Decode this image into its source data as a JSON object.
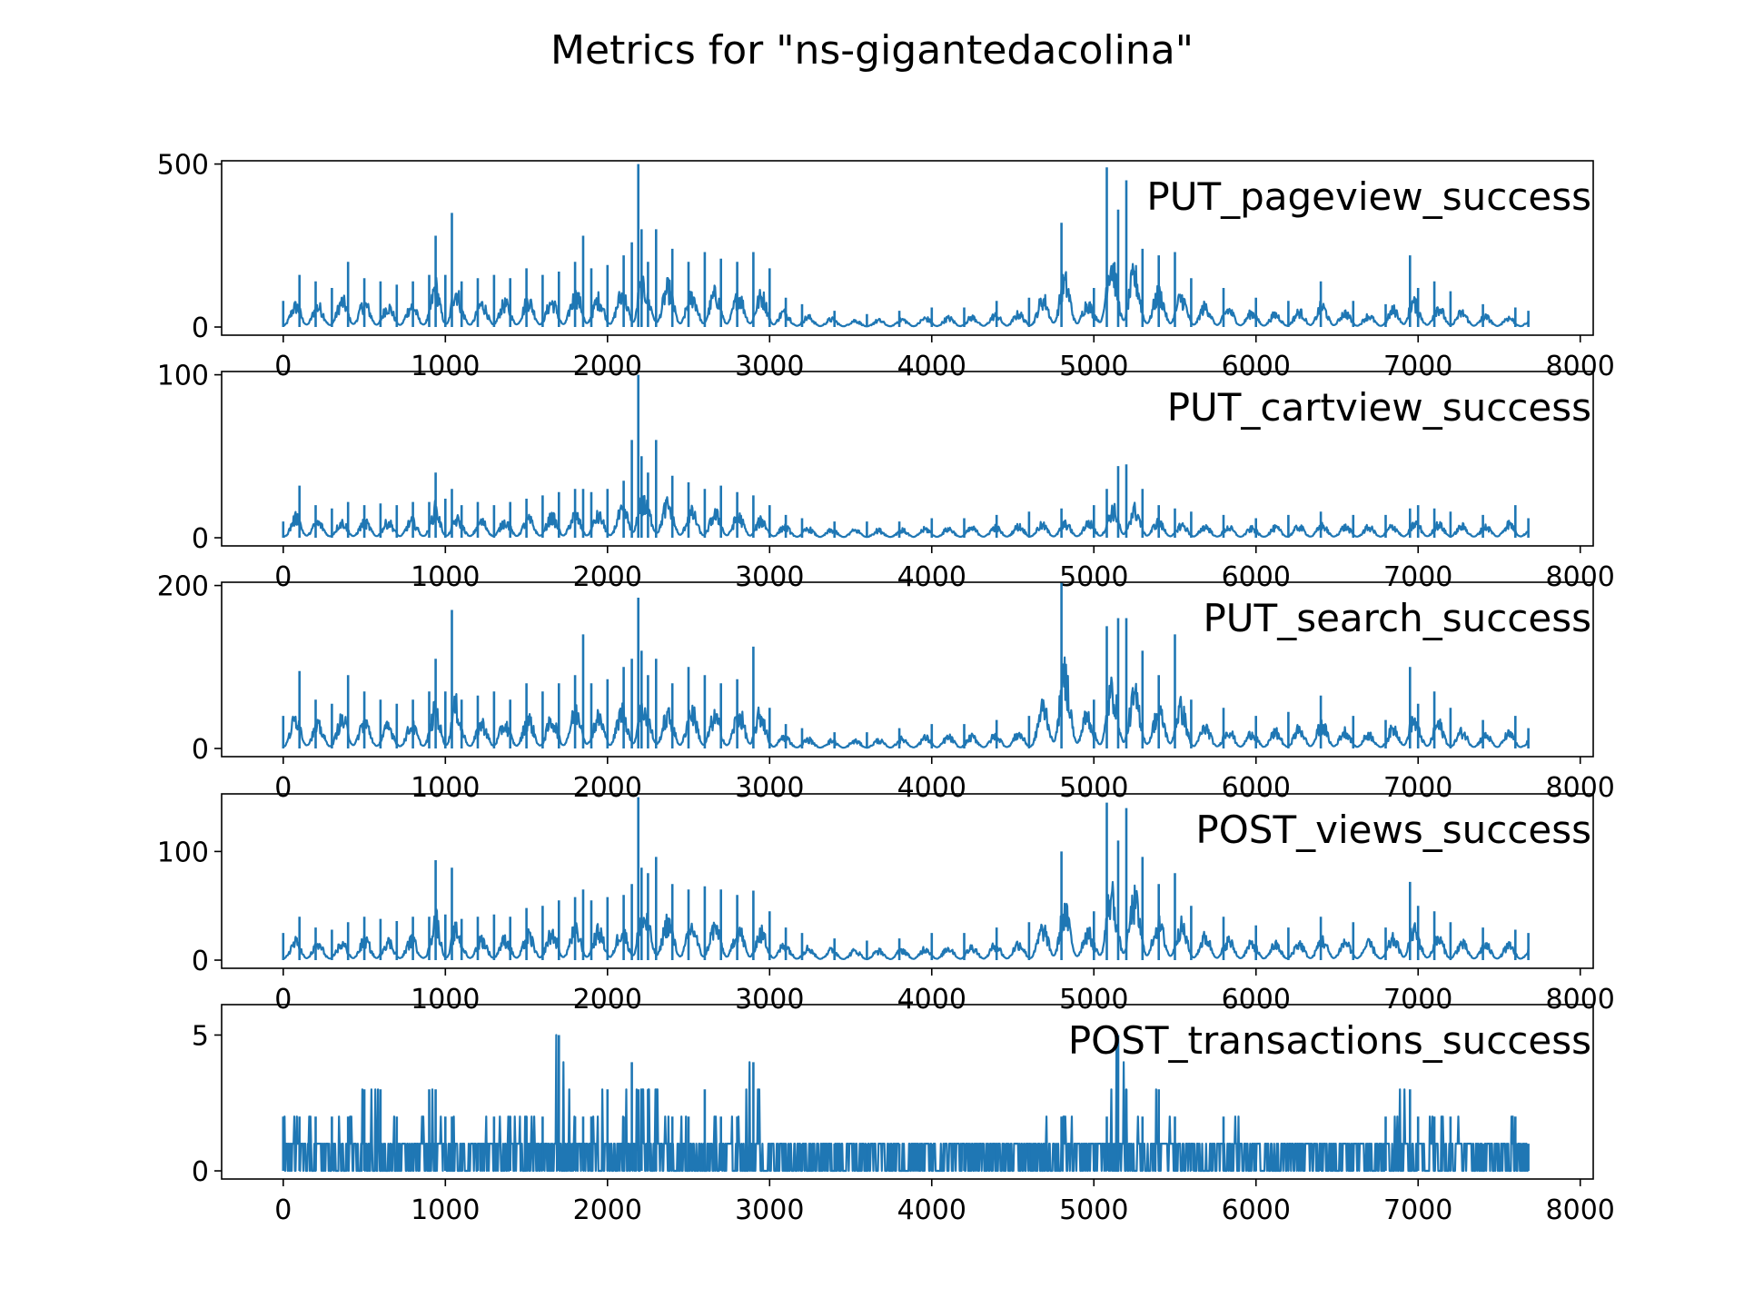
{
  "figure": {
    "title": "Metrics for \"ns-gigantedacolina\"",
    "line_color": "#1f77b4",
    "background": "#ffffff"
  },
  "chart_data": [
    {
      "type": "line",
      "title": "PUT_pageview_success",
      "xlabel": "",
      "ylabel": "",
      "xlim": [
        0,
        8000
      ],
      "ylim": [
        0,
        500
      ],
      "x_ticks": [
        "0",
        "1000",
        "2000",
        "3000",
        "4000",
        "5000",
        "6000",
        "7000",
        "8000"
      ],
      "y_ticks": [
        "0",
        "500"
      ],
      "grid": false,
      "x": [
        0,
        100,
        200,
        300,
        400,
        500,
        600,
        700,
        800,
        900,
        940,
        1000,
        1040,
        1100,
        1200,
        1300,
        1400,
        1500,
        1600,
        1700,
        1800,
        1850,
        1900,
        2000,
        2100,
        2150,
        2190,
        2210,
        2250,
        2300,
        2400,
        2500,
        2600,
        2700,
        2800,
        2900,
        3000,
        3100,
        3200,
        3400,
        3600,
        3800,
        4000,
        4200,
        4400,
        4600,
        4800,
        5000,
        5080,
        5150,
        5200,
        5300,
        5400,
        5500,
        5600,
        5800,
        6000,
        6200,
        6400,
        6600,
        6800,
        6950,
        7000,
        7100,
        7200,
        7400,
        7600,
        7680
      ],
      "values": [
        80,
        160,
        140,
        120,
        200,
        150,
        140,
        130,
        140,
        160,
        280,
        160,
        350,
        140,
        150,
        160,
        150,
        180,
        160,
        170,
        200,
        280,
        180,
        190,
        220,
        260,
        500,
        300,
        200,
        300,
        240,
        200,
        230,
        210,
        200,
        230,
        180,
        90,
        70,
        50,
        40,
        50,
        60,
        60,
        80,
        90,
        320,
        120,
        490,
        360,
        450,
        240,
        220,
        230,
        150,
        120,
        90,
        80,
        140,
        80,
        70,
        220,
        120,
        140,
        110,
        70,
        60,
        50
      ]
    },
    {
      "type": "line",
      "title": "PUT_cartview_success",
      "xlabel": "",
      "ylabel": "",
      "xlim": [
        0,
        8000
      ],
      "ylim": [
        0,
        100
      ],
      "x_ticks": [
        "0",
        "1000",
        "2000",
        "3000",
        "4000",
        "5000",
        "6000",
        "7000",
        "8000"
      ],
      "y_ticks": [
        "0",
        "100"
      ],
      "grid": false,
      "x": [
        0,
        100,
        200,
        300,
        400,
        500,
        600,
        700,
        800,
        900,
        940,
        1000,
        1040,
        1100,
        1200,
        1300,
        1400,
        1500,
        1600,
        1700,
        1800,
        1850,
        1900,
        2000,
        2100,
        2150,
        2190,
        2210,
        2250,
        2300,
        2400,
        2500,
        2600,
        2700,
        2800,
        2900,
        3000,
        3100,
        3200,
        3400,
        3600,
        3800,
        4000,
        4200,
        4400,
        4600,
        4800,
        5000,
        5080,
        5150,
        5200,
        5300,
        5400,
        5500,
        5600,
        5800,
        6000,
        6200,
        6400,
        6600,
        6800,
        6950,
        7000,
        7100,
        7200,
        7400,
        7600,
        7680
      ],
      "values": [
        10,
        32,
        20,
        18,
        22,
        20,
        21,
        20,
        22,
        22,
        40,
        24,
        30,
        20,
        22,
        20,
        22,
        24,
        26,
        28,
        30,
        30,
        28,
        30,
        35,
        60,
        100,
        50,
        40,
        60,
        38,
        34,
        30,
        32,
        28,
        26,
        20,
        14,
        12,
        10,
        10,
        10,
        12,
        12,
        14,
        16,
        18,
        20,
        30,
        44,
        45,
        30,
        20,
        18,
        16,
        14,
        12,
        14,
        16,
        14,
        14,
        18,
        20,
        18,
        16,
        14,
        20,
        12
      ]
    },
    {
      "type": "line",
      "title": "PUT_search_success",
      "xlabel": "",
      "ylabel": "",
      "xlim": [
        0,
        8000
      ],
      "ylim": [
        0,
        200
      ],
      "x_ticks": [
        "0",
        "1000",
        "2000",
        "3000",
        "4000",
        "5000",
        "6000",
        "7000",
        "8000"
      ],
      "y_ticks": [
        "0",
        "200"
      ],
      "grid": false,
      "x": [
        0,
        100,
        200,
        300,
        400,
        500,
        600,
        700,
        800,
        900,
        940,
        1000,
        1040,
        1100,
        1200,
        1300,
        1400,
        1500,
        1600,
        1700,
        1800,
        1850,
        1900,
        2000,
        2100,
        2150,
        2190,
        2210,
        2250,
        2300,
        2400,
        2500,
        2600,
        2700,
        2800,
        2900,
        3000,
        3100,
        3200,
        3400,
        3600,
        3800,
        4000,
        4200,
        4400,
        4600,
        4800,
        5000,
        5080,
        5150,
        5200,
        5300,
        5400,
        5500,
        5600,
        5800,
        6000,
        6200,
        6400,
        6600,
        6800,
        6950,
        7000,
        7100,
        7200,
        7400,
        7600,
        7680
      ],
      "values": [
        40,
        95,
        60,
        55,
        90,
        70,
        60,
        55,
        60,
        70,
        110,
        70,
        170,
        60,
        65,
        70,
        60,
        80,
        70,
        80,
        90,
        140,
        80,
        85,
        100,
        110,
        185,
        120,
        90,
        110,
        80,
        100,
        90,
        80,
        85,
        125,
        50,
        30,
        25,
        20,
        20,
        25,
        30,
        30,
        35,
        40,
        210,
        60,
        150,
        160,
        160,
        120,
        90,
        140,
        60,
        50,
        40,
        45,
        65,
        40,
        35,
        100,
        55,
        70,
        50,
        35,
        40,
        25
      ]
    },
    {
      "type": "line",
      "title": "POST_views_success",
      "xlabel": "",
      "ylabel": "",
      "xlim": [
        0,
        8000
      ],
      "ylim": [
        0,
        150
      ],
      "x_ticks": [
        "0",
        "1000",
        "2000",
        "3000",
        "4000",
        "5000",
        "6000",
        "7000",
        "8000"
      ],
      "y_ticks": [
        "0",
        "100"
      ],
      "grid": false,
      "x": [
        0,
        100,
        200,
        300,
        400,
        500,
        600,
        700,
        800,
        900,
        940,
        1000,
        1040,
        1100,
        1200,
        1300,
        1400,
        1500,
        1600,
        1700,
        1800,
        1850,
        1900,
        2000,
        2100,
        2150,
        2190,
        2210,
        2250,
        2300,
        2400,
        2500,
        2600,
        2700,
        2800,
        2900,
        3000,
        3100,
        3200,
        3400,
        3600,
        3800,
        4000,
        4200,
        4400,
        4600,
        4800,
        5000,
        5080,
        5150,
        5200,
        5300,
        5400,
        5500,
        5600,
        5800,
        6000,
        6200,
        6400,
        6600,
        6800,
        6950,
        7000,
        7100,
        7200,
        7400,
        7600,
        7680
      ],
      "values": [
        25,
        40,
        30,
        28,
        35,
        40,
        38,
        36,
        40,
        40,
        92,
        42,
        85,
        38,
        40,
        42,
        40,
        48,
        50,
        55,
        58,
        65,
        55,
        58,
        60,
        70,
        150,
        85,
        80,
        95,
        70,
        65,
        68,
        65,
        60,
        64,
        45,
        30,
        25,
        20,
        18,
        20,
        25,
        25,
        30,
        35,
        100,
        45,
        145,
        110,
        140,
        95,
        70,
        80,
        50,
        40,
        32,
        30,
        40,
        35,
        30,
        72,
        50,
        45,
        35,
        30,
        28,
        25
      ]
    },
    {
      "type": "line",
      "title": "POST_transactions_success",
      "xlabel": "",
      "ylabel": "",
      "xlim": [
        0,
        8000
      ],
      "ylim": [
        0,
        6
      ],
      "x_ticks": [
        "0",
        "1000",
        "2000",
        "3000",
        "4000",
        "5000",
        "6000",
        "7000",
        "8000"
      ],
      "y_ticks": [
        "0",
        "5"
      ],
      "grid": false,
      "x": [
        0,
        100,
        200,
        300,
        400,
        500,
        600,
        700,
        800,
        900,
        940,
        1000,
        1040,
        1100,
        1200,
        1300,
        1400,
        1500,
        1600,
        1700,
        1800,
        1850,
        1900,
        2000,
        2100,
        2150,
        2190,
        2210,
        2250,
        2300,
        2400,
        2500,
        2600,
        2700,
        2800,
        2900,
        3000,
        3100,
        3200,
        3400,
        3600,
        3800,
        4000,
        4200,
        4400,
        4600,
        4800,
        5000,
        5080,
        5150,
        5200,
        5300,
        5400,
        5500,
        5600,
        5800,
        6000,
        6200,
        6400,
        6600,
        6800,
        6950,
        7000,
        7100,
        7200,
        7400,
        7600,
        7680
      ],
      "values": [
        2,
        2,
        2,
        2,
        2,
        3,
        3,
        2,
        1,
        3,
        3,
        2,
        2,
        1,
        1,
        2,
        2,
        2,
        2,
        5,
        2,
        2,
        2,
        3,
        2,
        4,
        3,
        3,
        3,
        3,
        2,
        2,
        3,
        2,
        2,
        4,
        1,
        1,
        1,
        1,
        1,
        1,
        1,
        1,
        1,
        1,
        2,
        1,
        2,
        5,
        3,
        2,
        3,
        2,
        1,
        2,
        1,
        1,
        1,
        1,
        2,
        3,
        2,
        2,
        2,
        1,
        2,
        1
      ]
    }
  ]
}
